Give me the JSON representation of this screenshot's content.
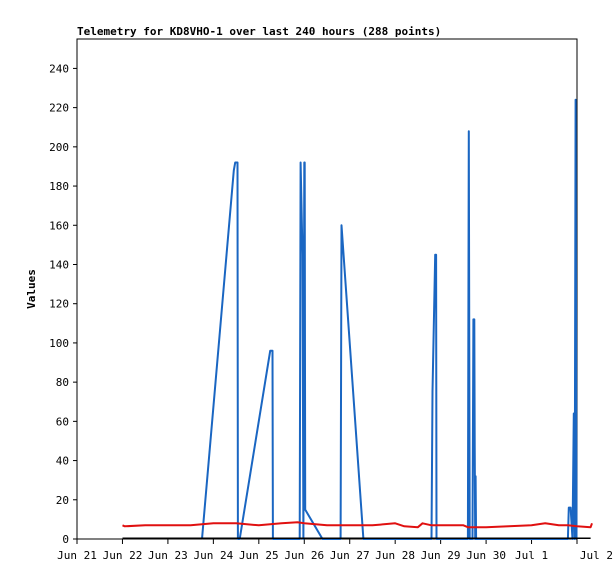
{
  "chart_data": {
    "type": "line",
    "title": "Telemetry for KD8VHO-1 over last 240 hours (288 points)",
    "xlabel": "",
    "ylabel": "Values",
    "xlim": [
      "Jun 21",
      "Jul 2"
    ],
    "ylim": [
      0,
      255
    ],
    "grid": false,
    "x_ticks": [
      "Jun 21",
      "Jun 22",
      "Jun 23",
      "Jun 24",
      "Jun 25",
      "Jun 26",
      "Jun 27",
      "Jun 28",
      "Jun 29",
      "Jun 30",
      "Jul 1",
      "Jul 2"
    ],
    "y_ticks": [
      0,
      20,
      40,
      60,
      80,
      100,
      120,
      140,
      160,
      180,
      200,
      220,
      240
    ],
    "x_unit": "days since Jun 21 00:00",
    "series": [
      {
        "name": "",
        "color": "#1a66c2",
        "points": [
          [
            2.75,
            0
          ],
          [
            3.45,
            188
          ],
          [
            3.48,
            192
          ],
          [
            3.53,
            192
          ],
          [
            3.54,
            0
          ],
          [
            3.58,
            0
          ],
          [
            4.25,
            96
          ],
          [
            4.3,
            96
          ],
          [
            4.31,
            0
          ],
          [
            4.33,
            0
          ],
          [
            4.9,
            0
          ],
          [
            4.92,
            192
          ],
          [
            4.96,
            145
          ],
          [
            4.98,
            0
          ],
          [
            5.0,
            192
          ],
          [
            5.01,
            192
          ],
          [
            5.02,
            15
          ],
          [
            5.4,
            0
          ],
          [
            5.8,
            0
          ],
          [
            5.82,
            160
          ],
          [
            6.3,
            0
          ],
          [
            7.8,
            0
          ],
          [
            7.82,
            75
          ],
          [
            7.88,
            145
          ],
          [
            7.9,
            145
          ],
          [
            7.91,
            0
          ],
          [
            8.6,
            0
          ],
          [
            8.62,
            208
          ],
          [
            8.64,
            0
          ],
          [
            8.7,
            0
          ],
          [
            8.72,
            112
          ],
          [
            8.74,
            112
          ],
          [
            8.75,
            48
          ],
          [
            8.76,
            0
          ],
          [
            8.77,
            32
          ],
          [
            8.78,
            0
          ],
          [
            10.8,
            0
          ],
          [
            10.82,
            16
          ],
          [
            10.86,
            16
          ],
          [
            10.9,
            0
          ],
          [
            10.93,
            64
          ],
          [
            10.95,
            0
          ],
          [
            10.97,
            224
          ],
          [
            10.99,
            0
          ]
        ]
      },
      {
        "name": "",
        "color": "#e01010",
        "points": [
          [
            1.0,
            7
          ],
          [
            1.05,
            6.5
          ],
          [
            1.5,
            7
          ],
          [
            2.0,
            7
          ],
          [
            2.5,
            7
          ],
          [
            3.0,
            8
          ],
          [
            3.5,
            8
          ],
          [
            4.0,
            7
          ],
          [
            4.5,
            8
          ],
          [
            4.85,
            8.5
          ],
          [
            5.0,
            8
          ],
          [
            5.5,
            7
          ],
          [
            6.0,
            7
          ],
          [
            6.5,
            7
          ],
          [
            7.0,
            8
          ],
          [
            7.2,
            6.5
          ],
          [
            7.5,
            6
          ],
          [
            7.6,
            8
          ],
          [
            7.8,
            7
          ],
          [
            8.0,
            7
          ],
          [
            8.5,
            7
          ],
          [
            8.6,
            6
          ],
          [
            9.0,
            6
          ],
          [
            9.5,
            6.5
          ],
          [
            10.0,
            7
          ],
          [
            10.3,
            8
          ],
          [
            10.6,
            7
          ],
          [
            10.8,
            7
          ],
          [
            11.0,
            6.5
          ],
          [
            11.3,
            6
          ],
          [
            11.33,
            8
          ]
        ]
      },
      {
        "name": "",
        "color": "#000000",
        "points": [
          [
            1.0,
            0.4
          ],
          [
            11.3,
            0.4
          ]
        ]
      }
    ]
  }
}
